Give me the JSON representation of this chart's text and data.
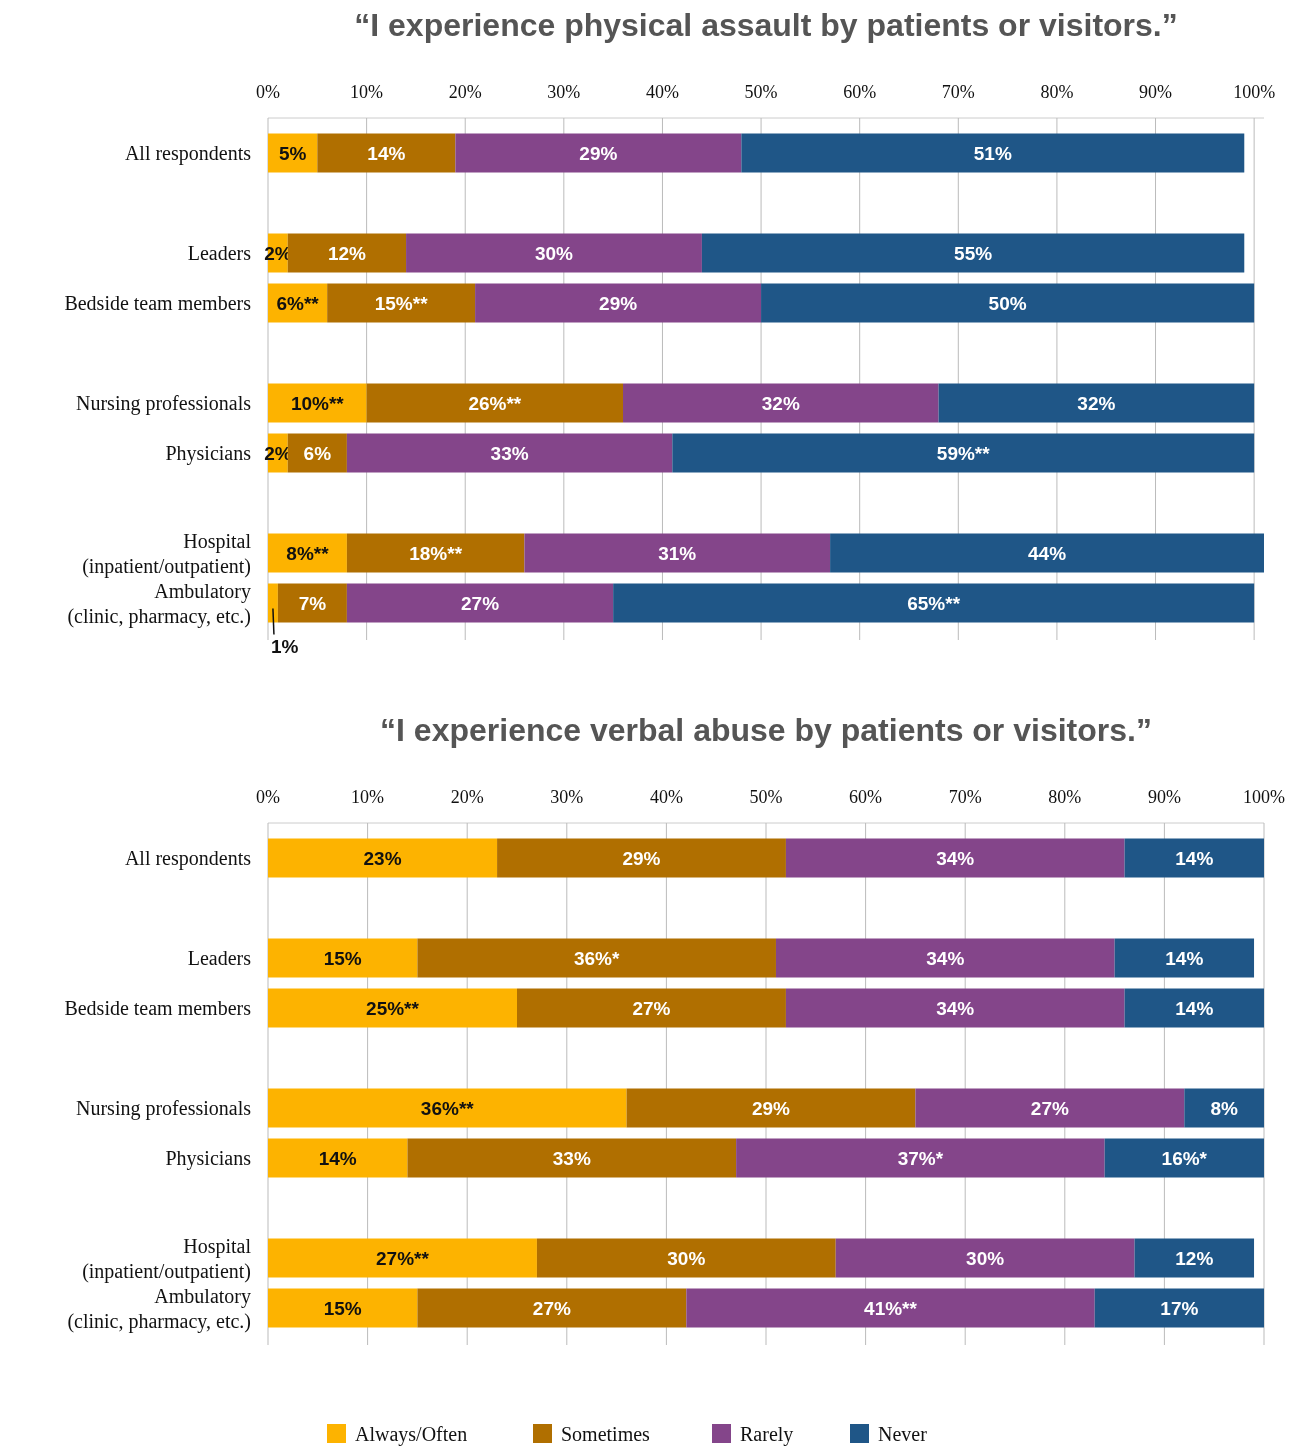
{
  "chart_data": [
    {
      "type": "bar",
      "orientation": "horizontal",
      "stacked": true,
      "title": "“I experience physical assault by patients or visitors.”",
      "categories": [
        "All respondents",
        null,
        "Leaders",
        "Bedside team members",
        null,
        "Nursing professionals",
        "Physicians",
        null,
        "Hospital\n(inpatient/outpatient)",
        "Ambulatory\n(clinic, pharmacy, etc.)"
      ],
      "series": [
        {
          "color": "#fdb300",
          "values": [
            5,
            null,
            2,
            6,
            null,
            10,
            2,
            null,
            8,
            1
          ],
          "value_labels": [
            "5%",
            null,
            "2%",
            "6%**",
            null,
            "10%**",
            "2%",
            null,
            "8%**",
            "1%"
          ]
        },
        {
          "color": "#b06f00",
          "values": [
            14,
            null,
            12,
            15,
            null,
            26,
            6,
            null,
            18,
            7
          ],
          "value_labels": [
            "14%",
            null,
            "12%",
            "15%**",
            null,
            "26%**",
            "6%",
            null,
            "18%**",
            "7%"
          ]
        },
        {
          "color": "#84458a",
          "values": [
            29,
            null,
            30,
            29,
            null,
            32,
            33,
            null,
            31,
            27
          ],
          "value_labels": [
            "29%",
            null,
            "30%",
            "29%",
            null,
            "32%",
            "33%",
            null,
            "31%",
            "27%"
          ]
        },
        {
          "color": "#1f5687",
          "values": [
            51,
            null,
            55,
            50,
            null,
            32,
            59,
            null,
            44,
            65
          ],
          "value_labels": [
            "51%",
            null,
            "55%",
            "50%",
            null,
            "32%",
            "59%**",
            null,
            "44%",
            "65%**"
          ]
        }
      ],
      "xlim": [
        0,
        101
      ],
      "xticks": [
        {
          "value": 0,
          "label": "0%"
        },
        {
          "value": 10,
          "label": "10%"
        },
        {
          "value": 20,
          "label": "20%"
        },
        {
          "value": 30,
          "label": "30%"
        },
        {
          "value": 40,
          "label": "40%"
        },
        {
          "value": 50,
          "label": "50%"
        },
        {
          "value": 60,
          "label": "60%"
        },
        {
          "value": 70,
          "label": "70%"
        },
        {
          "value": 80,
          "label": "80%"
        },
        {
          "value": 90,
          "label": "90%"
        },
        {
          "value": 100,
          "label": "100%"
        }
      ],
      "grid": "x"
    },
    {
      "type": "bar",
      "orientation": "horizontal",
      "stacked": true,
      "title": "“I experience verbal abuse by patients or visitors.”",
      "categories": [
        "All respondents",
        null,
        "Leaders",
        "Bedside team members",
        null,
        "Nursing professionals",
        "Physicians",
        null,
        "Hospital\n(inpatient/outpatient)",
        "Ambulatory\n(clinic, pharmacy, etc.)"
      ],
      "series": [
        {
          "name": "Always/Often",
          "color": "#fdb300",
          "values": [
            23,
            null,
            15,
            25,
            null,
            36,
            14,
            null,
            27,
            15
          ],
          "value_labels": [
            "23%",
            null,
            "15%",
            "25%**",
            null,
            "36%**",
            "14%",
            null,
            "27%**",
            "15%"
          ]
        },
        {
          "name": "Sometimes",
          "color": "#b06f00",
          "values": [
            29,
            null,
            36,
            27,
            null,
            29,
            33,
            null,
            30,
            27
          ],
          "value_labels": [
            "29%",
            null,
            "36%*",
            "27%",
            null,
            "29%",
            "33%",
            null,
            "30%",
            "27%"
          ]
        },
        {
          "name": "Rarely",
          "color": "#84458a",
          "values": [
            34,
            null,
            34,
            34,
            null,
            27,
            37,
            null,
            30,
            41
          ],
          "value_labels": [
            "34%",
            null,
            "34%",
            "34%",
            null,
            "27%",
            "37%*",
            null,
            "30%",
            "41%**"
          ]
        },
        {
          "name": "Never",
          "color": "#1f5687",
          "values": [
            14,
            null,
            14,
            14,
            null,
            8,
            16,
            null,
            12,
            17
          ],
          "value_labels": [
            "14%",
            null,
            "14%",
            "14%",
            null,
            "8%",
            "16%*",
            null,
            "12%",
            "17%"
          ]
        }
      ],
      "xlim": [
        0,
        100
      ],
      "xticks": [
        {
          "value": 0,
          "label": "0%"
        },
        {
          "value": 10,
          "label": "10%"
        },
        {
          "value": 20,
          "label": "20%"
        },
        {
          "value": 30,
          "label": "30%"
        },
        {
          "value": 40,
          "label": "40%"
        },
        {
          "value": 50,
          "label": "50%"
        },
        {
          "value": 60,
          "label": "60%"
        },
        {
          "value": 70,
          "label": "70%"
        },
        {
          "value": 80,
          "label": "80%"
        },
        {
          "value": 90,
          "label": "90%"
        },
        {
          "value": 100,
          "label": "100%"
        }
      ],
      "grid": "x",
      "legend": "bottom"
    }
  ]
}
